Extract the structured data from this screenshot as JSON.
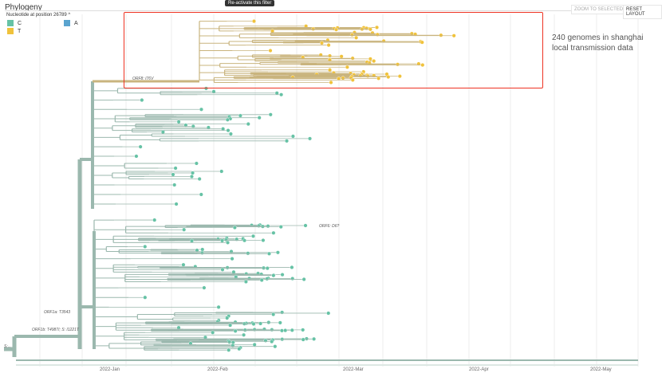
{
  "panel": {
    "title": "Phylogeny",
    "color_by": "Nucleotide at position 26789",
    "collapse_icon": "chevron-up-icon"
  },
  "legend": [
    {
      "label": "C",
      "color": "#66c2a5"
    },
    {
      "label": "A",
      "color": "#5aa4cf"
    },
    {
      "label": "T",
      "color": "#f0c23b"
    }
  ],
  "tooltip": "Re-activate this filter",
  "buttons": {
    "zoom": "ZOOM TO SELECTED",
    "reset": "RESET LAYOUT"
  },
  "annotation": [
    "240 genomes in shanghai",
    "local transmission data"
  ],
  "branch_labels": {
    "orf8": "ORF8: I76V",
    "orf6": "ORF6: D6?",
    "orf1a": "ORF1a: T3543",
    "orf1b": "ORF1b: T4987I; S: I1221T",
    "root": "S:..."
  },
  "axis": [
    "2022-Jan",
    "2022-Feb",
    "2022-Mar",
    "2022-Apr",
    "2022-May"
  ],
  "colors": {
    "branch": "#9bb8ae",
    "highlight_branch": "#c9b47e",
    "tip_c": "#66c2a5",
    "tip_t": "#f0c23b",
    "tip_a": "#5aa4cf",
    "box": "#e33322"
  }
}
